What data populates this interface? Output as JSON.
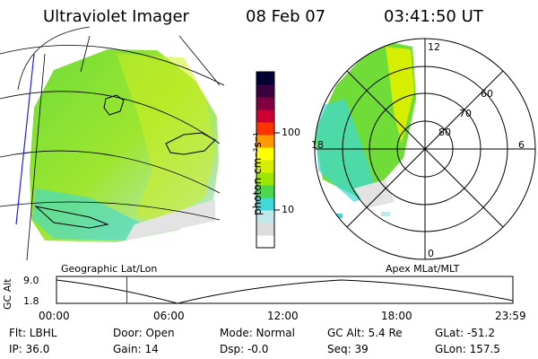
{
  "header": {
    "title": "Ultraviolet Imager",
    "date": "08 Feb 07",
    "time": "03:41:50 UT"
  },
  "left_panel": {
    "label": "Geographic Lat/Lon"
  },
  "right_panel": {
    "label": "Apex MLat/MLT",
    "mlt_labels": {
      "top": "12",
      "bottom": "0",
      "left": "18",
      "right": "6"
    },
    "lat_labels": [
      "60",
      "70",
      "80"
    ]
  },
  "colorbar": {
    "unit_label": "photon cm⁻²s⁻¹",
    "tick_labels": [
      "100",
      "10"
    ],
    "scale": "log",
    "colors": [
      "#ffffff",
      "#dcdcdc",
      "#bfe8e8",
      "#40d8d8",
      "#4cd84c",
      "#9ee600",
      "#d6ee00",
      "#ffff00",
      "#ff9900",
      "#ff3300",
      "#cc0033",
      "#800040",
      "#3a0040",
      "#000033"
    ]
  },
  "altitude_plot": {
    "ylabel": "GC Alt",
    "y_ticks": [
      "9.0",
      "1.8"
    ],
    "x_ticks": [
      "00:00",
      "06:00",
      "12:00",
      "18:00",
      "23:59"
    ],
    "current_marker_hour": 3.7
  },
  "status": {
    "filter": "Flt: LBHL",
    "door": "Door: Open",
    "mode": "Mode: Normal",
    "gc_alt": "GC Alt: 5.4 Re",
    "glat": "GLat: -51.2",
    "ip": "IP: 36.0",
    "gain": "Gain: 14",
    "dsp": "Dsp:   -0.0",
    "seq": "Seq: 39",
    "glon": "GLon: 157.5"
  }
}
